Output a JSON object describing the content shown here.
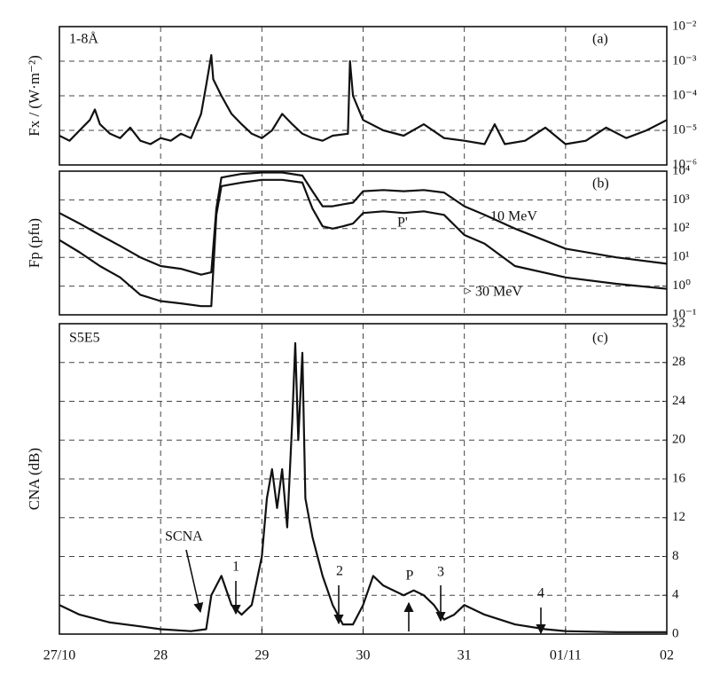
{
  "chart_data": [
    {
      "type": "line",
      "ylabel": "Fx / (W·m⁻²)",
      "log_y": true,
      "grid": true,
      "ylim": [
        1e-06,
        0.01
      ],
      "yticks": [
        {
          "value": 0.01,
          "label": "10⁻²"
        },
        {
          "value": 0.001,
          "label": "10⁻³"
        },
        {
          "value": 0.0001,
          "label": "10⁻⁴"
        },
        {
          "value": 1e-05,
          "label": "10⁻⁵"
        },
        {
          "value": 1e-06,
          "label": "10⁻⁶"
        }
      ],
      "annotations": [
        "1-8Å",
        "(a)"
      ],
      "x": [
        27.0,
        27.1,
        27.2,
        27.3,
        27.35,
        27.4,
        27.5,
        27.6,
        27.7,
        27.8,
        27.9,
        28.0,
        28.1,
        28.2,
        28.3,
        28.4,
        28.45,
        28.5,
        28.52,
        28.6,
        28.7,
        28.8,
        28.9,
        29.0,
        29.1,
        29.2,
        29.3,
        29.4,
        29.5,
        29.6,
        29.7,
        29.85,
        29.87,
        29.9,
        30.0,
        30.2,
        30.4,
        30.6,
        30.8,
        31.0,
        31.2,
        31.3,
        31.4,
        31.6,
        31.8,
        32.0,
        32.2,
        32.4,
        32.6,
        32.8,
        33.0
      ],
      "series": [
        {
          "color": "#111111",
          "values": [
            7e-06,
            5e-06,
            1e-05,
            2e-05,
            4e-05,
            1.5e-05,
            8e-06,
            6e-06,
            1.2e-05,
            5e-06,
            4e-06,
            6e-06,
            5e-06,
            8e-06,
            6e-06,
            3e-05,
            0.0002,
            0.0015,
            0.0003,
            0.0001,
            3e-05,
            1.5e-05,
            8e-06,
            6e-06,
            1e-05,
            3e-05,
            1.5e-05,
            8e-06,
            6e-06,
            5e-06,
            7e-06,
            8e-06,
            0.001,
            0.0001,
            2e-05,
            1e-05,
            7e-06,
            1.5e-05,
            6e-06,
            5e-06,
            4e-06,
            1.5e-05,
            4e-06,
            5e-06,
            1.2e-05,
            4e-06,
            5e-06,
            1.2e-05,
            6e-06,
            1e-05,
            2e-05
          ]
        }
      ]
    },
    {
      "type": "line",
      "ylabel": "Fp (pfu)",
      "log_y": true,
      "grid": true,
      "ylim": [
        0.1,
        10000
      ],
      "yticks": [
        {
          "value": 10000,
          "label": "10⁴"
        },
        {
          "value": 1000,
          "label": "10³"
        },
        {
          "value": 100,
          "label": "10²"
        },
        {
          "value": 10,
          "label": "10¹"
        },
        {
          "value": 1,
          "label": "10⁰"
        },
        {
          "value": 0.1,
          "label": "10⁻¹"
        }
      ],
      "annotations": [
        "(b)",
        "> 10 MeV",
        "P'",
        "> 30 MeV"
      ],
      "x": [
        27.0,
        27.2,
        27.4,
        27.6,
        27.8,
        28.0,
        28.2,
        28.4,
        28.5,
        28.55,
        28.6,
        28.8,
        29.0,
        29.2,
        29.4,
        29.5,
        29.6,
        29.7,
        29.8,
        29.9,
        30.0,
        30.2,
        30.4,
        30.6,
        30.8,
        31.0,
        31.2,
        31.5,
        32.0,
        32.5,
        33.0
      ],
      "series": [
        {
          "color": "#111111",
          "values": [
            350,
            150,
            60,
            25,
            10,
            5,
            4,
            2.5,
            3,
            500,
            6000,
            8000,
            9000,
            9000,
            7000,
            2000,
            600,
            600,
            700,
            800,
            2000,
            2200,
            2000,
            2200,
            1800,
            600,
            300,
            100,
            20,
            10,
            6
          ]
        },
        {
          "color": "#111111",
          "values": [
            40,
            15,
            5,
            2,
            0.5,
            0.3,
            0.25,
            0.2,
            0.2,
            300,
            3000,
            4000,
            5000,
            5000,
            4000,
            500,
            120,
            100,
            120,
            150,
            350,
            400,
            350,
            400,
            300,
            60,
            30,
            5,
            2,
            1.2,
            0.8
          ]
        }
      ]
    },
    {
      "type": "line",
      "ylabel": "CNA (dB)",
      "log_y": false,
      "grid": true,
      "ylim": [
        0,
        32
      ],
      "yticks": [
        0,
        4,
        8,
        12,
        16,
        20,
        24,
        28,
        32
      ],
      "xlim": [
        27,
        33
      ],
      "xticks": [
        {
          "value": 27,
          "label": "27/10"
        },
        28,
        29,
        30,
        31,
        {
          "value": 32,
          "label": "01/11"
        },
        {
          "value": 33,
          "label": "02"
        }
      ],
      "annotations": [
        "S5E5",
        "(c)",
        "SCNA",
        "1",
        "2",
        "P",
        "3",
        "4"
      ],
      "x": [
        27.0,
        27.2,
        27.5,
        27.8,
        28.0,
        28.3,
        28.45,
        28.5,
        28.6,
        28.7,
        28.8,
        28.9,
        29.0,
        29.05,
        29.1,
        29.15,
        29.2,
        29.25,
        29.3,
        29.33,
        29.36,
        29.4,
        29.43,
        29.5,
        29.6,
        29.7,
        29.8,
        29.9,
        30.0,
        30.1,
        30.2,
        30.4,
        30.5,
        30.6,
        30.7,
        30.8,
        30.9,
        31.0,
        31.2,
        31.5,
        31.8,
        32.0,
        32.5,
        33.0
      ],
      "series": [
        {
          "color": "#111111",
          "values": [
            3,
            2,
            1.2,
            0.8,
            0.5,
            0.3,
            0.5,
            4,
            6,
            3,
            2,
            3,
            8,
            14,
            17,
            13,
            17,
            11,
            22,
            30,
            20,
            29,
            14,
            10,
            6,
            3,
            1,
            1,
            3,
            6,
            5,
            4,
            4.5,
            4,
            3,
            1.5,
            2,
            3,
            2,
            1,
            0.5,
            0.3,
            0.2,
            0.2
          ]
        }
      ]
    }
  ]
}
